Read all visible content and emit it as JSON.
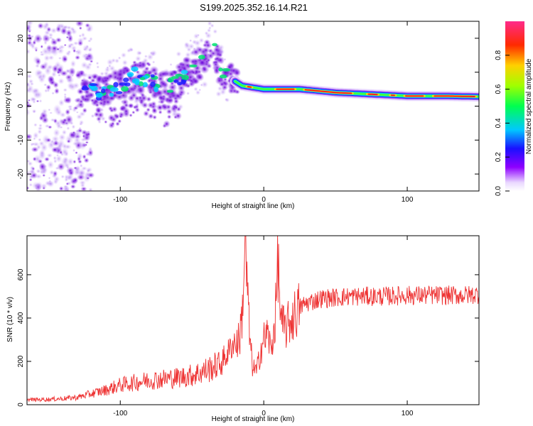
{
  "title": "S199.2025.352.16.14.R21",
  "chart_data": [
    {
      "type": "heatmap",
      "name": "spectrogram",
      "xlabel": "Height of straight line (km)",
      "ylabel": "Frequency (Hz)",
      "xlim": [
        -165,
        150
      ],
      "ylim": [
        -25,
        25
      ],
      "xticks": [
        -100,
        0,
        100
      ],
      "yticks": [
        -20,
        -10,
        0,
        10,
        20
      ],
      "colorbar": {
        "label": "Normalized spectral amplitude",
        "range": [
          0,
          1
        ],
        "ticks": [
          0.0,
          0.2,
          0.4,
          0.6,
          0.8
        ]
      },
      "ridge": [
        {
          "x": -125,
          "y": 5
        },
        {
          "x": -110,
          "y": 4
        },
        {
          "x": -100,
          "y": 6
        },
        {
          "x": -90,
          "y": 9
        },
        {
          "x": -80,
          "y": 8
        },
        {
          "x": -70,
          "y": 5
        },
        {
          "x": -60,
          "y": 7
        },
        {
          "x": -50,
          "y": 11
        },
        {
          "x": -40,
          "y": 14
        },
        {
          "x": -35,
          "y": 18
        },
        {
          "x": -30,
          "y": 10
        },
        {
          "x": -15,
          "y": 6
        },
        {
          "x": 0,
          "y": 5
        },
        {
          "x": 25,
          "y": 5
        },
        {
          "x": 50,
          "y": 4
        },
        {
          "x": 75,
          "y": 3.5
        },
        {
          "x": 100,
          "y": 3
        },
        {
          "x": 125,
          "y": 3
        },
        {
          "x": 150,
          "y": 2.8
        }
      ]
    },
    {
      "type": "line",
      "name": "snr",
      "xlabel": "Height of straight line (km)",
      "ylabel": "SNR (10 * v/v)",
      "xlim": [
        -165,
        150
      ],
      "ylim": [
        0,
        780
      ],
      "xticks": [
        -100,
        0,
        100
      ],
      "yticks": [
        0,
        200,
        400,
        600
      ],
      "color": "#ee3333",
      "x": [
        -165,
        -150,
        -140,
        -130,
        -120,
        -110,
        -100,
        -90,
        -80,
        -70,
        -60,
        -50,
        -40,
        -30,
        -25,
        -20,
        -17,
        -15,
        -13,
        -10,
        -8,
        -5,
        -2,
        0,
        3,
        5,
        8,
        10,
        12,
        15,
        20,
        25,
        30,
        40,
        50,
        60,
        70,
        80,
        90,
        100,
        110,
        120,
        130,
        140,
        150
      ],
      "y": [
        20,
        22,
        25,
        30,
        45,
        60,
        80,
        90,
        100,
        105,
        110,
        120,
        140,
        170,
        220,
        280,
        300,
        420,
        760,
        330,
        180,
        150,
        260,
        300,
        330,
        240,
        400,
        670,
        370,
        350,
        400,
        450,
        470,
        490,
        495,
        500,
        500,
        500,
        502,
        505,
        505,
        505,
        505,
        505,
        510
      ]
    }
  ]
}
